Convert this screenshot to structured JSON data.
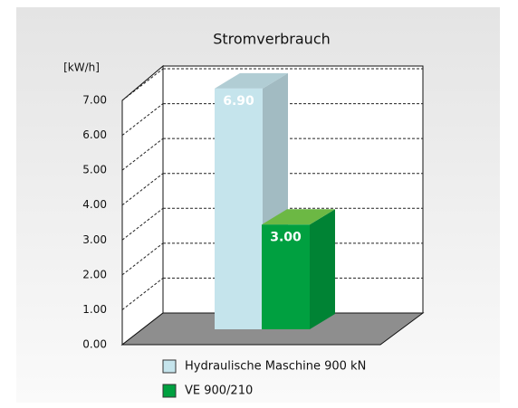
{
  "chart_data": {
    "type": "bar3d",
    "title": "Stromverbrauch",
    "y_axis_label": "[kW/h]",
    "categories": [
      "Hydraulische Maschine 900 kN",
      "VE 900/210"
    ],
    "series": [
      {
        "name": "Hydraulische Maschine 900 kN",
        "color": "#c5e4ec",
        "values": [
          6.9,
          null
        ],
        "value_labels": [
          "6.90",
          null
        ]
      },
      {
        "name": "VE 900/210",
        "color": "#00a040",
        "values": [
          null,
          3.0
        ],
        "value_labels": [
          null,
          "3.00"
        ]
      }
    ],
    "ylim": [
      0,
      7
    ],
    "yticks": [
      {
        "value": 0,
        "label": "0.00"
      },
      {
        "value": 1,
        "label": "1.00"
      },
      {
        "value": 2,
        "label": "2.00"
      },
      {
        "value": 3,
        "label": "3.00"
      },
      {
        "value": 4,
        "label": "4.00"
      },
      {
        "value": 5,
        "label": "5.00"
      },
      {
        "value": 6,
        "label": "6.00"
      },
      {
        "value": 7,
        "label": "7.00"
      }
    ],
    "grid": true
  }
}
